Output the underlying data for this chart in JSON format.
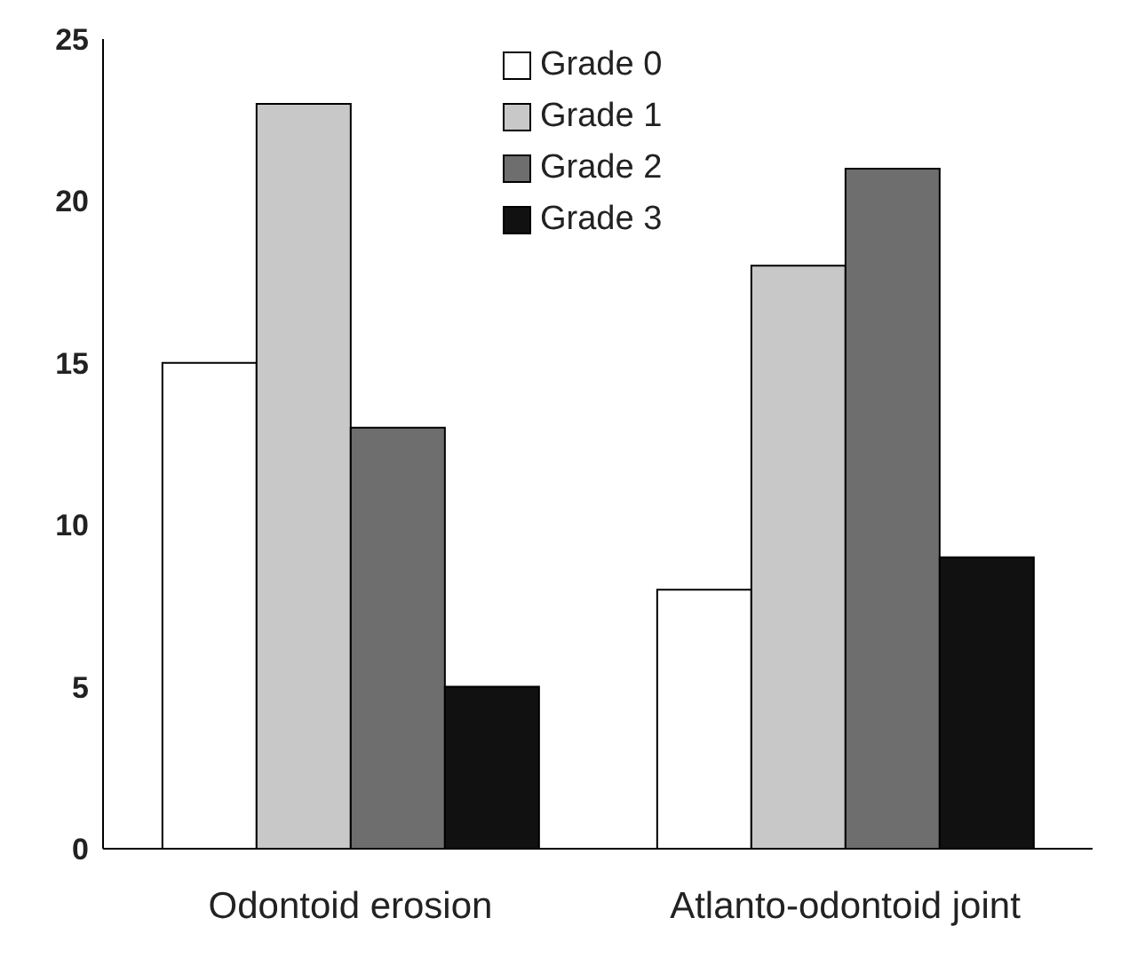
{
  "chart_data": {
    "type": "bar",
    "categories": [
      "Odontoid erosion",
      "Atlanto-odontoid joint"
    ],
    "series": [
      {
        "name": "Grade 0",
        "color": "#ffffff",
        "values": [
          15,
          8
        ]
      },
      {
        "name": "Grade 1",
        "color": "#c8c8c8",
        "values": [
          23,
          18
        ]
      },
      {
        "name": "Grade 2",
        "color": "#6e6e6e",
        "values": [
          13,
          21
        ]
      },
      {
        "name": "Grade 3",
        "color": "#111111",
        "values": [
          5,
          9
        ]
      }
    ],
    "ylim": [
      0,
      25
    ],
    "yticks": [
      0,
      5,
      10,
      15,
      20,
      25
    ],
    "grid": false,
    "legend": "top"
  }
}
